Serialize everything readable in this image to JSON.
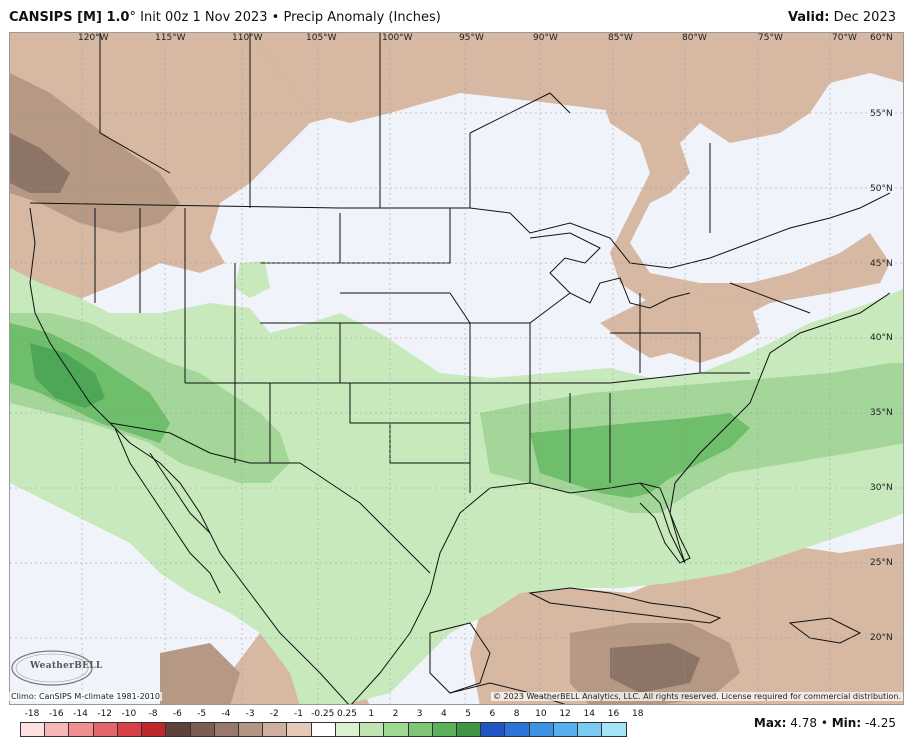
{
  "header": {
    "model": "CANSIPS [M] 1.0",
    "deg": "°",
    "init": " Init 00z 1 Nov 2023 • Precip Anomaly (Inches)",
    "valid_label": "Valid:",
    "valid_value": " Dec 2023"
  },
  "map": {
    "lon_labels": [
      "120°W",
      "115°W",
      "110°W",
      "105°W",
      "100°W",
      "95°W",
      "90°W",
      "85°W",
      "80°W",
      "75°W",
      "70°W",
      "60°N"
    ],
    "lat_labels": [
      "55°N",
      "50°N",
      "45°N",
      "40°N",
      "35°N",
      "30°N",
      "25°N",
      "20°N"
    ],
    "colors": {
      "no_anomaly": "#f1f3fb",
      "dry_light": "#d6b8a3",
      "dry_med": "#b59985",
      "dry_dark": "#8c7467",
      "wet_light": "#c8e9bc",
      "wet_med": "#a4d699",
      "wet_dark": "#6fbe6b",
      "wet_darker": "#4ea657",
      "border": "#111111"
    }
  },
  "footer": {
    "climo": "Climo: CanSIPS M-climate 1981-2010",
    "copyright": "© 2023 WeatherBELL Analytics, LLC. All rights reserved. License required for commercial distribution.",
    "logo_text": "WeatherBELL"
  },
  "legend": {
    "labels": [
      "-18",
      "-16",
      "-14",
      "-12",
      "-10",
      "-8",
      "-6",
      "-5",
      "-4",
      "-3",
      "-2",
      "-1",
      "-0.25",
      "0.25",
      "1",
      "2",
      "3",
      "4",
      "5",
      "6",
      "8",
      "10",
      "12",
      "14",
      "16",
      "18"
    ],
    "colors": [
      "#fde0e0",
      "#f7b7b9",
      "#f08e92",
      "#e6656b",
      "#d84148",
      "#c0262c",
      "#5e4138",
      "#7b5e51",
      "#977a6b",
      "#b39584",
      "#cdb09d",
      "#e3c9b6",
      "#ffffff",
      "#daf2d0",
      "#bfe6b2",
      "#9fd893",
      "#7cc676",
      "#5bb25d",
      "#3f9646",
      "#1f55c4",
      "#2c74da",
      "#3c92e4",
      "#57b0ee",
      "#79cbf4",
      "#a3e4fa"
    ]
  },
  "stats": {
    "max_label": "Max:",
    "max_value": " 4.78",
    "sep": " • ",
    "min_label": "Min:",
    "min_value": " -4.25"
  }
}
